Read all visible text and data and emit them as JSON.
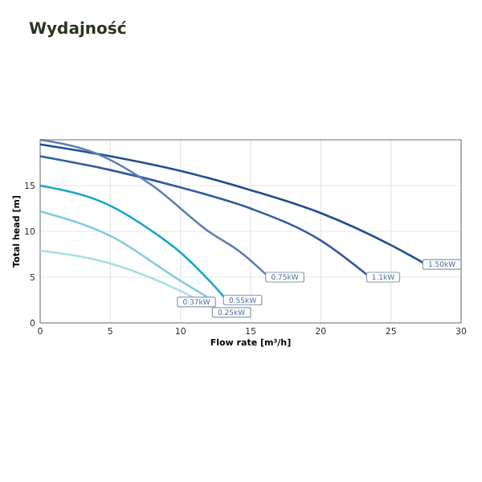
{
  "chart_data": {
    "type": "line",
    "title": "Wydajność",
    "xlabel": "Flow rate [m³/h]",
    "ylabel": "Total head [m]",
    "xlim": [
      0,
      30
    ],
    "ylim": [
      0,
      20
    ],
    "xticks": [
      0,
      5,
      10,
      15,
      20,
      25,
      30
    ],
    "yticks": [
      0,
      5,
      10,
      15
    ],
    "grid": true,
    "line_style": "solid",
    "series": [
      {
        "color": "#1f4e8c",
        "x": [
          0,
          5,
          10,
          15,
          20,
          25,
          27.5
        ],
        "values": [
          19.5,
          18.2,
          16.6,
          14.5,
          12,
          8.5,
          6.4
        ]
      },
      {
        "color": "#2f5d9c",
        "x": [
          0,
          5,
          10,
          15,
          20,
          23.5
        ],
        "values": [
          18.2,
          16.7,
          14.8,
          12.5,
          9,
          5
        ]
      },
      {
        "color": "#5b7fb5",
        "x": [
          0,
          4,
          8,
          12,
          14.3,
          16.3
        ],
        "values": [
          20,
          18.5,
          15,
          10,
          7.7,
          5
        ]
      },
      {
        "color": "#1aa6c8",
        "x": [
          0,
          5,
          8,
          10,
          12,
          13.3
        ],
        "values": [
          15,
          12.8,
          10,
          7.7,
          4.7,
          2.5
        ]
      },
      {
        "color": "#7fcde0",
        "x": [
          0,
          5,
          10,
          12.5
        ],
        "values": [
          12.2,
          9.5,
          4.6,
          2.3
        ]
      },
      {
        "color": "#a8dde8",
        "x": [
          0,
          5,
          10,
          12.5
        ],
        "values": [
          7.9,
          6.5,
          3.5,
          1.5
        ]
      }
    ],
    "annotations": [
      {
        "text": "1.50kW",
        "x": 27.5,
        "y": 6.4
      },
      {
        "text": "1.1kW",
        "x": 23.5,
        "y": 5
      },
      {
        "text": "0.75kW",
        "x": 16.3,
        "y": 5
      },
      {
        "text": "0.55kW",
        "x": 13.3,
        "y": 2.5
      },
      {
        "text": "0.37kW",
        "x": 12.5,
        "y": 2.3
      },
      {
        "text": "0.25kW",
        "x": 12.5,
        "y": 1.5
      }
    ]
  }
}
